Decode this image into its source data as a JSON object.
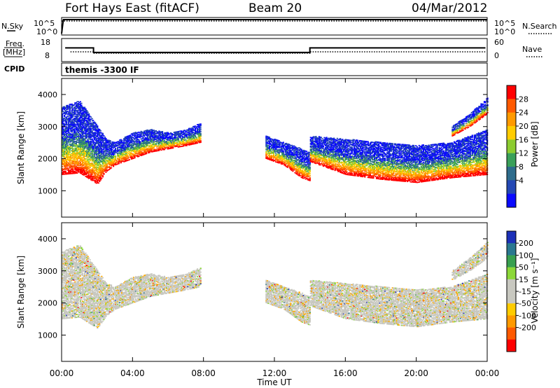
{
  "header": {
    "station": "Fort Hays East (fitACF)",
    "beam": "Beam 20",
    "date": "04/Mar/2012"
  },
  "top_panels": {
    "nsky_label": "N.Sky",
    "nsky_ticks": [
      "10^5",
      "10^0"
    ],
    "nsearch_label": "N.Search",
    "nsearch_ticks": [
      "10^5",
      "10^0"
    ],
    "freq_label": "Freq.",
    "freq_unit": "[MHz]",
    "freq_ticks": [
      "18",
      "8"
    ],
    "nave_label": "Nave",
    "nave_ticks": [
      "60",
      "0"
    ],
    "cpid_label": "CPID",
    "cpid_value": "themis -3300 IF"
  },
  "colorbars": {
    "power": {
      "label": "Power [dB]",
      "ticks": [
        "28",
        "24",
        "20",
        "16",
        "12",
        "8",
        "4"
      ],
      "colors": [
        "#ff0000",
        "#ff5a00",
        "#ff9a00",
        "#ffcc00",
        "#8ccc30",
        "#3aa05a",
        "#2e6c8c",
        "#2448b4",
        "#0a0aff"
      ]
    },
    "velocity": {
      "label": "Velocity [m s⁻¹]",
      "ticks": [
        "200",
        "100",
        "50",
        "15",
        "-15",
        "-50",
        "-100",
        "-200"
      ],
      "colors": [
        "#1c30b8",
        "#2a7890",
        "#38a050",
        "#8cd838",
        "#c8c8c0",
        "#c8c8c0",
        "#ffcc00",
        "#ff9a00",
        "#ff5a00",
        "#ff0000"
      ]
    }
  },
  "chart_data": [
    {
      "type": "line",
      "title": "N.Sky / N.Search",
      "x_range": [
        0,
        24
      ],
      "series": [
        {
          "name": "N.Sky",
          "x": [
            0,
            0.1,
            24
          ],
          "values": [
            1,
            100000,
            100000
          ]
        },
        {
          "name": "N.Search",
          "x": [
            0,
            24
          ],
          "values": [
            100000,
            100000
          ]
        }
      ]
    },
    {
      "type": "line",
      "title": "Freq. / Nave",
      "x_range": [
        0,
        24
      ],
      "series": [
        {
          "name": "Freq.",
          "x": [
            0.2,
            1.8,
            1.8,
            14.0,
            14.0,
            23.9
          ],
          "values": [
            14.5,
            14.5,
            11.8,
            11.8,
            14.5,
            14.5
          ]
        },
        {
          "name": "Nave",
          "x": [
            0.5,
            1.8,
            1.8,
            14.0,
            14.0,
            23.9
          ],
          "values": [
            25,
            25,
            20,
            20,
            25,
            25
          ]
        }
      ]
    },
    {
      "type": "heatmap",
      "title": "Power",
      "xlabel": "",
      "ylabel": "Slant Range [km]",
      "x_range": [
        0,
        24
      ],
      "ylim": [
        180,
        4500
      ],
      "yticks": [
        1000,
        2000,
        3000,
        4000
      ],
      "colorbar_range": [
        0,
        30
      ],
      "bands": [
        {
          "x": [
            0.0,
            1.0,
            2.0,
            2.5,
            3.0,
            4.0,
            5.0,
            6.0,
            7.0,
            7.8
          ],
          "low": [
            1500,
            1550,
            1200,
            1600,
            1800,
            2000,
            2200,
            2300,
            2400,
            2500
          ],
          "high": [
            3600,
            3800,
            3000,
            2600,
            2500,
            2800,
            2900,
            2800,
            2900,
            3100
          ],
          "power": 20
        },
        {
          "x": [
            11.5,
            12.5,
            13.5,
            14.0
          ],
          "low": [
            2000,
            1800,
            1400,
            1300
          ],
          "high": [
            2700,
            2500,
            2300,
            2200
          ],
          "power": 14
        },
        {
          "x": [
            14.0,
            16.0,
            18.0,
            20.0,
            22.0,
            24.0
          ],
          "low": [
            1900,
            1500,
            1350,
            1250,
            1400,
            1500
          ],
          "high": [
            2700,
            2600,
            2500,
            2400,
            2500,
            2900
          ],
          "power": 20
        },
        {
          "x": [
            22.0,
            23.0,
            24.0
          ],
          "low": [
            2700,
            3000,
            3400
          ],
          "high": [
            3000,
            3400,
            3900
          ],
          "power": 12
        }
      ]
    },
    {
      "type": "heatmap",
      "title": "Velocity",
      "xlabel": "Time UT",
      "ylabel": "Slant Range [km]",
      "x_range": [
        0,
        24
      ],
      "xticks": [
        "00:00",
        "04:00",
        "08:00",
        "12:00",
        "16:00",
        "20:00",
        "00:00"
      ],
      "ylim": [
        180,
        4500
      ],
      "yticks": [
        1000,
        2000,
        3000,
        4000
      ],
      "colorbar_range": [
        -250,
        250
      ],
      "bands": [
        {
          "x": [
            0.0,
            1.0,
            2.0,
            2.5,
            3.0,
            4.0,
            5.0,
            6.0,
            7.0,
            7.8
          ],
          "low": [
            1500,
            1550,
            1200,
            1600,
            1800,
            2000,
            2200,
            2300,
            2400,
            2500
          ],
          "high": [
            3600,
            3800,
            3000,
            2600,
            2500,
            2800,
            2900,
            2800,
            2900,
            3100
          ],
          "velocity": 0
        },
        {
          "x": [
            11.5,
            12.5,
            13.5,
            14.0
          ],
          "low": [
            2000,
            1800,
            1400,
            1300
          ],
          "high": [
            2700,
            2500,
            2300,
            2200
          ],
          "velocity": 20
        },
        {
          "x": [
            14.0,
            16.0,
            18.0,
            20.0,
            22.0,
            24.0
          ],
          "low": [
            1900,
            1500,
            1350,
            1250,
            1400,
            1500
          ],
          "high": [
            2700,
            2600,
            2500,
            2400,
            2500,
            2900
          ],
          "velocity": 0
        },
        {
          "x": [
            22.0,
            23.0,
            24.0
          ],
          "low": [
            2700,
            3000,
            3400
          ],
          "high": [
            3000,
            3400,
            3900
          ],
          "velocity": -30
        }
      ]
    }
  ]
}
